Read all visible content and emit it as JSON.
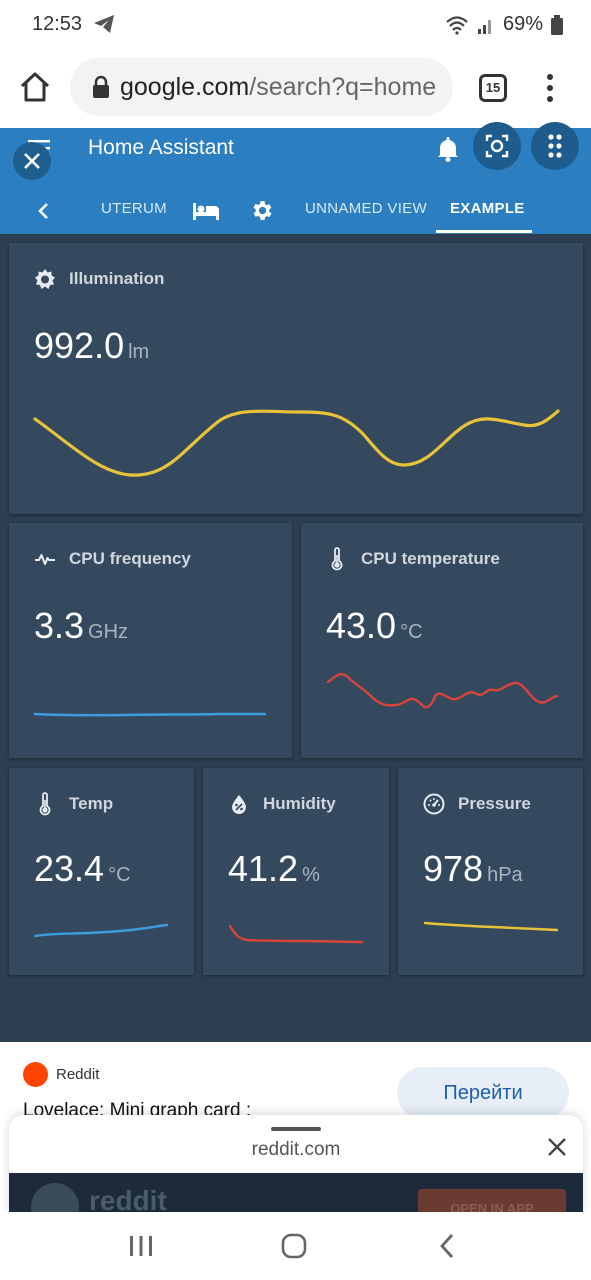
{
  "status_bar": {
    "time": "12:53",
    "battery": "69%"
  },
  "browser": {
    "url_domain": "google.com",
    "url_path": "/search?q=home",
    "tab_count": "15"
  },
  "ha": {
    "title": "Home Assistant",
    "tabs": [
      {
        "label": "UTERUM"
      },
      {
        "label": "UNNAMED VIEW"
      },
      {
        "label": "EXAMPLE"
      }
    ]
  },
  "cards": {
    "illumination": {
      "name": "Illumination",
      "value": "992.0",
      "unit": "lm",
      "color": "#e8c33a"
    },
    "cpu_freq": {
      "name": "CPU frequency",
      "value": "3.3",
      "unit": "GHz",
      "color": "#3d9be0"
    },
    "cpu_temp": {
      "name": "CPU temperature",
      "value": "43.0",
      "unit": "°C",
      "color": "#d9443a"
    },
    "temp": {
      "name": "Temp",
      "value": "23.4",
      "unit": "°C",
      "color": "#3d9be0"
    },
    "humidity": {
      "name": "Humidity",
      "value": "41.2",
      "unit": "%",
      "color": "#d9443a"
    },
    "pressure": {
      "name": "Pressure",
      "value": "978",
      "unit": "hPa",
      "color": "#e8c33a"
    }
  },
  "web": {
    "source": "Reddit",
    "button": "Перейти",
    "headline": "Lovelace: Mini graph card :",
    "sheet_domain": "reddit.com",
    "preview_brand": "reddit",
    "preview_button": "OPEN IN APP"
  }
}
